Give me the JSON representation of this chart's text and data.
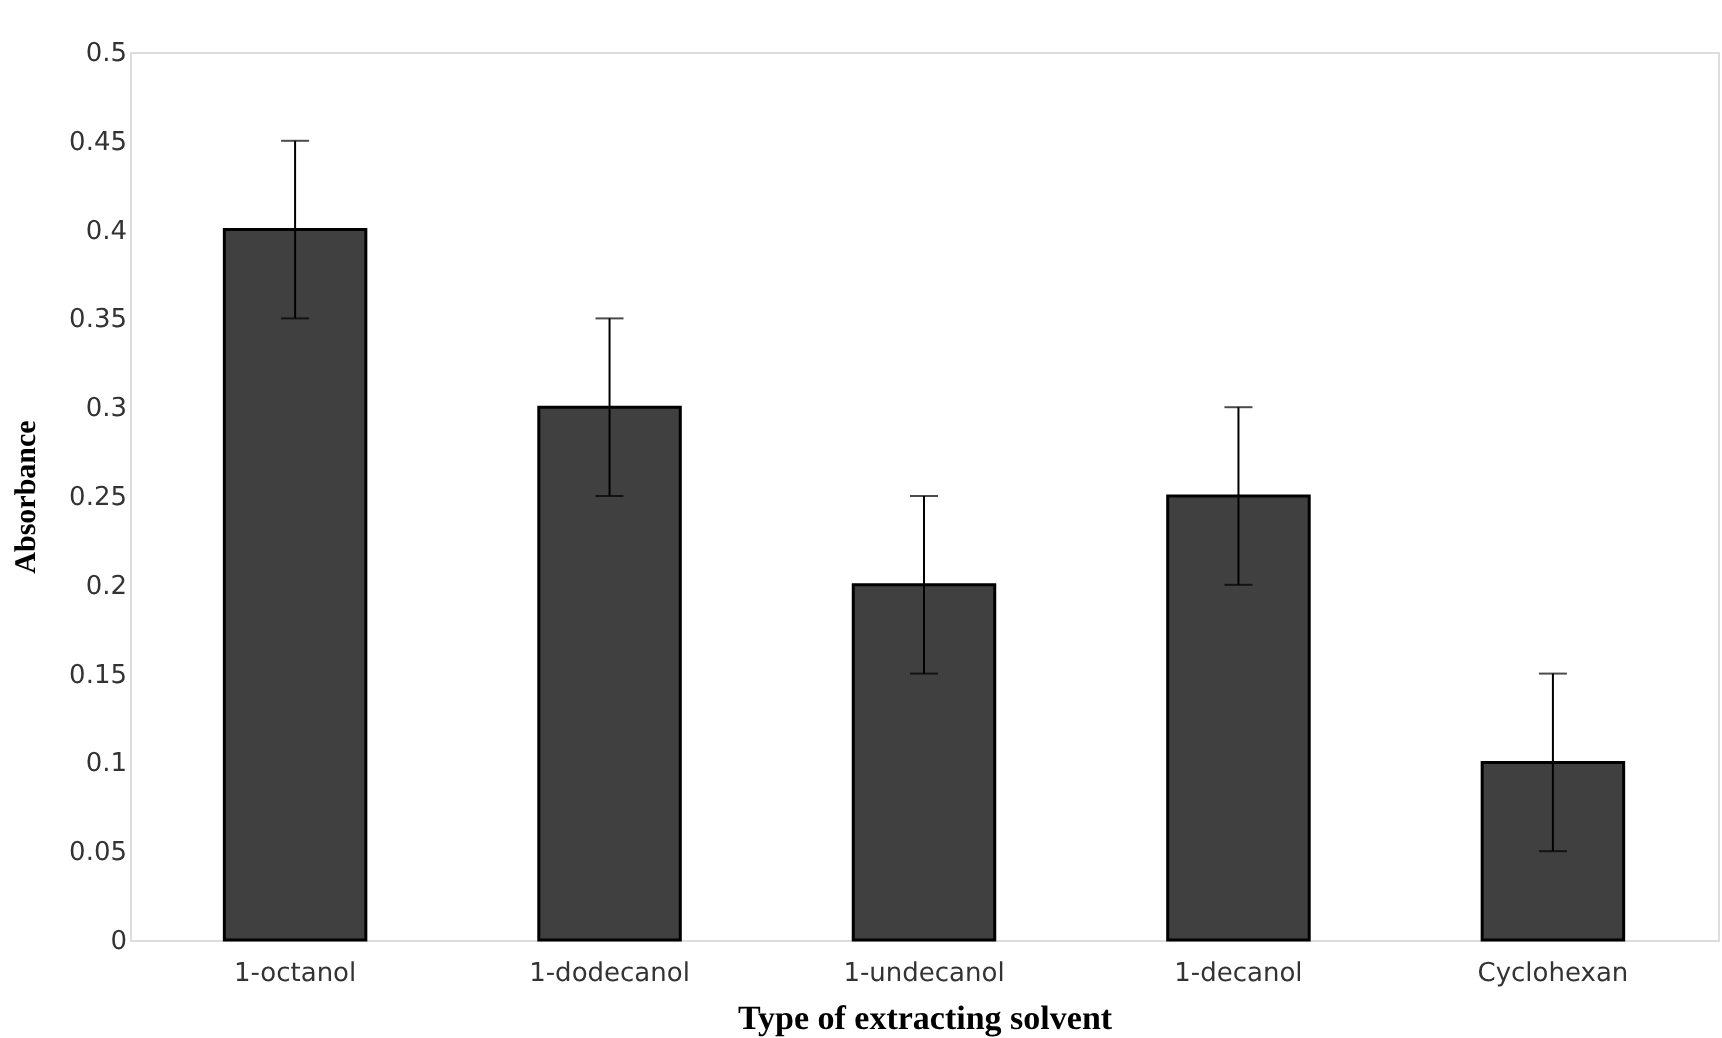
{
  "chart_data": {
    "type": "bar",
    "xlabel": "Type of extracting solvent",
    "ylabel": "Absorbance",
    "categories": [
      "1-octanol",
      "1-dodecanol",
      "1-undecanol",
      "1-decanol",
      "Cyclohexan"
    ],
    "values": [
      0.4,
      0.3,
      0.2,
      0.25,
      0.1
    ],
    "errors": [
      0.05,
      0.05,
      0.05,
      0.05,
      0.05
    ],
    "color": "#404040",
    "ylim": [
      0,
      0.5
    ],
    "yticks": [
      0,
      0.05,
      0.1,
      0.15,
      0.2,
      0.25,
      0.3,
      0.35,
      0.4,
      0.45,
      0.5
    ],
    "grid": false
  }
}
